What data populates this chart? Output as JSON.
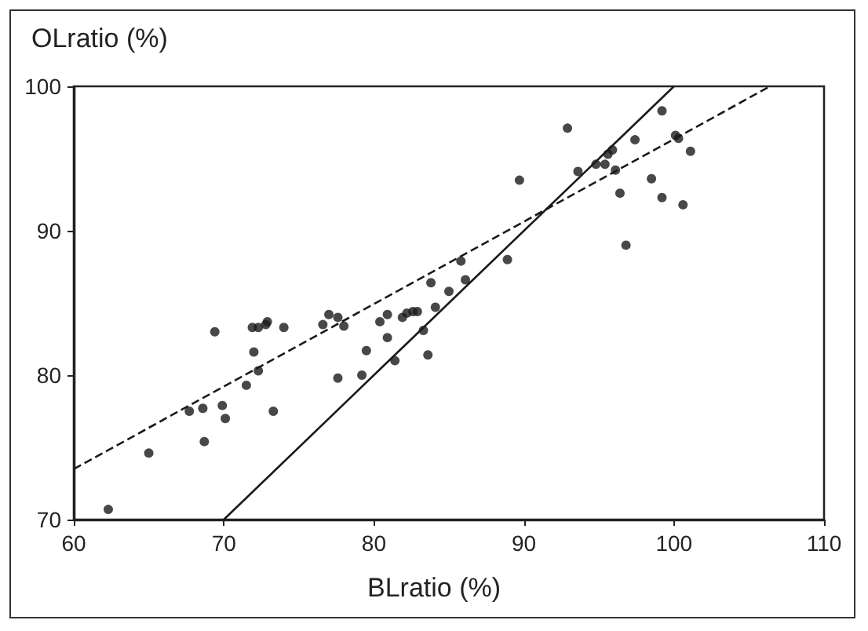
{
  "chart_data": {
    "type": "scatter",
    "xlabel": "BLratio (%)",
    "ylabel": "OLratio (%)",
    "xlim": [
      60,
      110
    ],
    "xticks": [
      60,
      70,
      80,
      90,
      100,
      110
    ],
    "ylim": [
      70,
      100
    ],
    "yticks": [
      70,
      80,
      90,
      100
    ],
    "grid": false,
    "series": [
      {
        "color": "#1a1a1a",
        "marker": "circle",
        "x": [
          62.3,
          65.0,
          67.7,
          68.6,
          68.7,
          69.4,
          69.9,
          70.1,
          71.5,
          72.0,
          71.9,
          72.3,
          72.3,
          72.8,
          72.9,
          73.3,
          74.0,
          76.6,
          77.0,
          77.6,
          77.6,
          78.0,
          79.2,
          79.5,
          80.4,
          80.9,
          80.9,
          81.4,
          81.9,
          82.2,
          82.6,
          82.9,
          83.3,
          83.6,
          83.8,
          84.1,
          85.0,
          85.8,
          86.1,
          88.9,
          89.7,
          92.9,
          99.2,
          93.6,
          94.8,
          95.4,
          95.6,
          95.9,
          96.1,
          97.4,
          96.4,
          96.8,
          98.5,
          99.2,
          100.1,
          100.3,
          100.6,
          101.1
        ],
        "values": [
          70.7,
          74.6,
          77.5,
          77.7,
          75.4,
          83.0,
          77.9,
          77.0,
          79.3,
          81.6,
          83.3,
          83.3,
          80.3,
          83.5,
          83.7,
          77.5,
          83.3,
          83.5,
          84.2,
          84.0,
          79.8,
          83.4,
          80.0,
          81.7,
          83.7,
          84.2,
          82.6,
          81.0,
          84.0,
          84.3,
          84.4,
          84.4,
          83.1,
          81.4,
          86.4,
          84.7,
          85.8,
          87.9,
          86.6,
          88.0,
          93.5,
          97.1,
          98.3,
          94.1,
          94.6,
          94.6,
          95.3,
          95.6,
          94.2,
          96.3,
          92.6,
          89.0,
          93.6,
          92.3,
          96.6,
          96.4,
          91.8,
          95.5
        ]
      },
      {
        "type": "line",
        "color": "#1a1a1a",
        "marker": "none",
        "line_style": "dashed",
        "x": [
          60,
          106.4
        ],
        "values": [
          73.5,
          100
        ]
      },
      {
        "type": "line",
        "color": "#1a1a1a",
        "marker": "none",
        "line_style": "solid",
        "x": [
          70,
          100
        ],
        "values": [
          70,
          100
        ]
      }
    ]
  }
}
